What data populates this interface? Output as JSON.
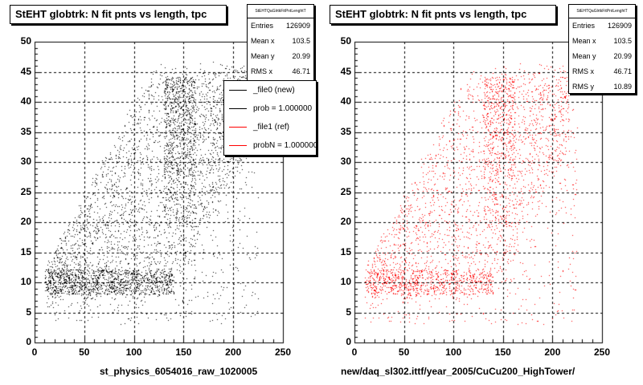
{
  "chart_data": [
    {
      "type": "scatter",
      "title": "StEHT globtrk: N fit pnts vs length, tpc",
      "xlabel": "st_physics_6054016_raw_1020005",
      "ylabel": "",
      "xlim": [
        0,
        250
      ],
      "ylim": [
        0,
        50
      ],
      "xticks": [
        "0",
        "50",
        "100",
        "150",
        "200",
        "250"
      ],
      "yticks": [
        "0",
        "5",
        "10",
        "15",
        "20",
        "25",
        "30",
        "35",
        "40",
        "45",
        "50"
      ],
      "grid": true,
      "marker_color": "#000000",
      "stats": {
        "name": "StEHTQaGlrtkFitPntLenghtT",
        "rows": [
          {
            "label": "Entries",
            "value": "126909"
          },
          {
            "label": "Mean x",
            "value": "103.5"
          },
          {
            "label": "Mean y",
            "value": "20.99"
          },
          {
            "label": "RMS x",
            "value": "46.71"
          }
        ]
      },
      "legend": {
        "placement": "top-right",
        "entries": [
          {
            "label": "_file0 (new)",
            "color": "#000000"
          },
          {
            "label": "prob = 1.000000",
            "color": "#000000"
          },
          {
            "label": "_file1 (ref)",
            "color": "#ff0000"
          },
          {
            "label": "probN = 1.000000",
            "color": "#ff0000"
          }
        ]
      }
    },
    {
      "type": "scatter",
      "title": "StEHT globtrk: N fit pnts vs length, tpc",
      "xlabel": "new/daq_sl302.ittf/year_2005/CuCu200_HighTower/",
      "ylabel": "",
      "xlim": [
        0,
        250
      ],
      "ylim": [
        0,
        50
      ],
      "xticks": [
        "0",
        "50",
        "100",
        "150",
        "200",
        "250"
      ],
      "yticks": [
        "0",
        "5",
        "10",
        "15",
        "20",
        "25",
        "30",
        "35",
        "40",
        "45",
        "50"
      ],
      "grid": true,
      "marker_color": "#ff0000",
      "stats": {
        "name": "StEHTQaGlrtkFitPntLenghtT",
        "rows": [
          {
            "label": "Entries",
            "value": "126909"
          },
          {
            "label": "Mean x",
            "value": "103.5"
          },
          {
            "label": "Mean y",
            "value": "20.99"
          },
          {
            "label": "RMS x",
            "value": "46.71"
          },
          {
            "label": "RMS y",
            "value": "10.89"
          }
        ]
      }
    }
  ]
}
